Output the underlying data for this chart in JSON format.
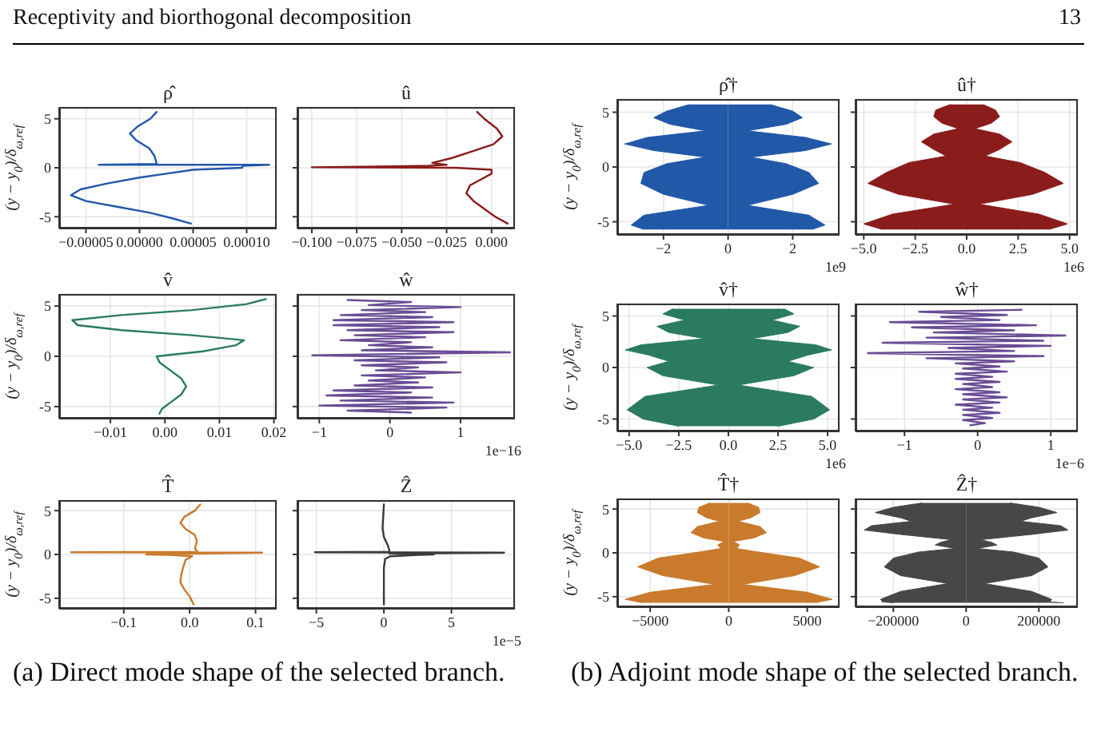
{
  "chart_data": [
    {
      "type": "line",
      "orientation": "horizontal",
      "title": "ρ̂",
      "ylabel": "(y − y$_{0}$)/δ$_{ω,ref}$",
      "grid": true,
      "annotations": [
        "Receptivity and biorthogonal decomposition",
        "13",
        "(a) Direct mode shape of the selected branch."
      ],
      "x": [
        5.7,
        5.0,
        4.2,
        3.5,
        2.8,
        2.0,
        1.2,
        0.4,
        0.3,
        0.3,
        0.2,
        0.0,
        -0.2,
        -0.6,
        -1.0,
        -1.6,
        -2.2,
        -2.8,
        -3.4,
        -4.0,
        -4.6,
        -5.2,
        -5.7
      ],
      "series": [
        {
          "color": "#2158a8",
          "values": [
            1.6e-05,
            1e-05,
            -2e-06,
            -9e-06,
            -3e-06,
            9e-06,
            1.4e-05,
            1.6e-05,
            -3.8e-05,
            0.000121,
            9.6e-05,
            9.6e-05,
            5e-05,
            2.5e-05,
            0,
            -3e-05,
            -5.5e-05,
            -6.4e-05,
            -5e-05,
            -2e-05,
            1e-05,
            3.2e-05,
            4.8e-05
          ]
        }
      ],
      "xlim": [
        -7.5e-05,
        0.000128
      ],
      "xticks": [
        {
          "value": -5e-05,
          "label": "−0.00005"
        },
        {
          "value": 0,
          "label": "0.00000"
        },
        {
          "value": 5e-05,
          "label": "0.00005"
        },
        {
          "value": 0.0001,
          "label": "0.00010"
        }
      ],
      "ylim": [
        -6.2,
        6.2
      ],
      "yticks": [
        -5,
        0,
        5
      ]
    },
    {
      "type": "line",
      "orientation": "horizontal",
      "title": "û",
      "grid": true,
      "tick_labels": "x",
      "x": [
        5.7,
        5,
        4,
        3.2,
        2.4,
        1.6,
        1.0,
        0.5,
        0.3,
        0.2,
        0.05,
        0,
        -0.2,
        -0.6,
        -1.2,
        -1.8,
        -2.6,
        -3.4,
        -4.2,
        -5,
        -5.7
      ],
      "series": [
        {
          "color": "#8b1c1c",
          "values": [
            -0.008,
            -0.004,
            0.003,
            0.006,
            0.001,
            -0.012,
            -0.022,
            -0.033,
            -0.025,
            -0.035,
            -0.1,
            -0.02,
            0,
            0,
            -0.006,
            -0.012,
            -0.014,
            -0.01,
            -0.004,
            0.002,
            0.009
          ]
        }
      ],
      "xlim": [
        -0.108,
        0.013
      ],
      "xticks": [
        {
          "value": -0.1,
          "label": "−0.100"
        },
        {
          "value": -0.075,
          "label": "−0.075"
        },
        {
          "value": -0.05,
          "label": "−0.050"
        },
        {
          "value": -0.025,
          "label": "−0.025"
        },
        {
          "value": 0,
          "label": "0.000"
        }
      ],
      "ylim": [
        -6.2,
        6.2
      ],
      "yticks": [
        -5,
        0,
        5
      ]
    },
    {
      "type": "line",
      "orientation": "horizontal",
      "title": "v̂",
      "ylabel": "(y − y$_{0}$)/δ$_{ω,ref}$",
      "grid": true,
      "x": [
        5.7,
        5.2,
        4.6,
        4.1,
        3.6,
        3.1,
        2.6,
        2.1,
        1.6,
        1.1,
        0.5,
        0,
        -0.6,
        -1.4,
        -2.2,
        -3,
        -3.8,
        -4.6,
        -5.2,
        -5.7
      ],
      "series": [
        {
          "color": "#2a7b60",
          "values": [
            0.0185,
            0.015,
            0.005,
            -0.008,
            -0.017,
            -0.016,
            -0.008,
            0.005,
            0.0145,
            0.013,
            0.007,
            -0.0015,
            -0.001,
            0.001,
            0.003,
            0.0039,
            0.003,
            0.001,
            -0.0005,
            -0.001
          ]
        }
      ],
      "xlim": [
        -0.0194,
        0.0205
      ],
      "xticks": [
        {
          "value": -0.01,
          "label": "−0.01"
        },
        {
          "value": 0,
          "label": "0.00"
        },
        {
          "value": 0.01,
          "label": "0.01"
        },
        {
          "value": 0.02,
          "label": "0.02"
        }
      ],
      "ylim": [
        -6.2,
        6.2
      ],
      "yticks": [
        -5,
        0,
        5
      ]
    },
    {
      "type": "line",
      "orientation": "horizontal",
      "title": "ŵ",
      "xlabel": "1e−16",
      "grid": true,
      "tick_labels": "x",
      "x": [
        5.6,
        5.4,
        5.1,
        4.9,
        4.6,
        4.4,
        4.1,
        3.9,
        3.6,
        3.4,
        3.1,
        2.9,
        2.6,
        2.4,
        2.1,
        1.9,
        1.6,
        1.4,
        1.1,
        0.9,
        0.6,
        0.4,
        0.1,
        -0.1,
        -0.4,
        -0.6,
        -0.9,
        -1.1,
        -1.4,
        -1.6,
        -1.9,
        -2.1,
        -2.4,
        -2.6,
        -2.9,
        -3.1,
        -3.4,
        -3.6,
        -3.9,
        -4.1,
        -4.4,
        -4.6,
        -4.9,
        -5.1,
        -5.4,
        -5.6
      ],
      "series": [
        {
          "color": "#6a4c94",
          "values": [
            -0.6,
            0.3,
            -0.3,
            1.0,
            -0.4,
            0.5,
            -0.7,
            0.6,
            -0.8,
            0.9,
            -0.8,
            0.7,
            -0.6,
            0.9,
            -0.5,
            0.5,
            -0.7,
            0.3,
            -0.3,
            0.6,
            -0.4,
            1.7,
            -1.1,
            0.7,
            -0.5,
            0.8,
            -0.4,
            0.4,
            -0.2,
            1.0,
            -0.4,
            0.5,
            -0.3,
            0.4,
            -0.5,
            0.6,
            -0.8,
            0.3,
            -0.9,
            0.6,
            -0.7,
            0.9,
            -1.0,
            0.8,
            -0.6,
            0.3
          ]
        }
      ],
      "xlim": [
        -1.31,
        1.77
      ],
      "xticks": [
        {
          "value": -1,
          "label": "−1"
        },
        0,
        1
      ],
      "ylim": [
        -6.2,
        6.2
      ],
      "yticks": [
        -5,
        0,
        5
      ]
    },
    {
      "type": "line",
      "orientation": "horizontal",
      "title": "T̂",
      "ylabel": "(y − y$_{0}$)/δ$_{ω,ref}$",
      "grid": true,
      "x": [
        5.7,
        5,
        4.3,
        3.6,
        2.9,
        2.2,
        1.5,
        0.7,
        0.3,
        0.25,
        0.2,
        0.1,
        0,
        -0.05,
        -0.2,
        -0.6,
        -1.5,
        -2.4,
        -3.2,
        -4,
        -4.8,
        -5.7
      ],
      "series": [
        {
          "color": "#c97a2c",
          "values": [
            0.016,
            0.008,
            -0.008,
            -0.014,
            -0.006,
            0.008,
            0.011,
            0.008,
            0.012,
            -0.18,
            0.11,
            0.008,
            -0.066,
            -0.03,
            0.004,
            -0.006,
            -0.01,
            -0.013,
            -0.014,
            -0.008,
            0,
            0.006
          ]
        }
      ],
      "xlim": [
        -0.198,
        0.132
      ],
      "xticks": [
        {
          "value": -0.1,
          "label": "−0.1"
        },
        {
          "value": 0,
          "label": "0.0"
        },
        {
          "value": 0.1,
          "label": "0.1"
        }
      ],
      "ylim": [
        -6.2,
        6.2
      ],
      "yticks": [
        -5,
        0,
        5
      ]
    },
    {
      "type": "line",
      "orientation": "horizontal",
      "title": "Ẑ",
      "xlabel": "1e−5",
      "grid": true,
      "tick_labels": "x",
      "x": [
        5.7,
        3,
        2,
        1,
        0.5,
        0.3,
        0.25,
        0.2,
        0.1,
        0,
        -0.05,
        -0.2,
        -0.5,
        -1.5,
        -5.7
      ],
      "series": [
        {
          "color": "#3a3a3a",
          "values": [
            0,
            -0.1,
            0,
            0.3,
            0.4,
            0.4,
            -5.1,
            8.9,
            0.4,
            3.7,
            2.6,
            0.5,
            0.1,
            0,
            0
          ]
        }
      ],
      "xlim": [
        -6.4,
        9.7
      ],
      "xticks": [
        {
          "value": -5,
          "label": "−5"
        },
        0,
        5
      ],
      "ylim": [
        -6.2,
        6.2
      ],
      "yticks": [
        -5,
        0,
        5
      ]
    },
    {
      "type": "area",
      "orientation": "horizontal",
      "title": "ρ̂†",
      "xlabel": "1e9",
      "ylabel": "(y − y$_{0}$)/δ$_{ω,ref}$",
      "grid": true,
      "annotations": [
        "(b) Adjoint mode shape of the selected branch."
      ],
      "x": [
        5.7,
        5.1,
        4.5,
        3.9,
        3.3,
        2.7,
        2.1,
        1.5,
        0.9,
        0.3,
        -0.5,
        -1.5,
        -2.5,
        -3.5,
        -4.4,
        -5.3,
        -5.7
      ],
      "series": [
        {
          "color": "#2158a8",
          "values": [
            1.3,
            2.0,
            2.3,
            1.8,
            0.6,
            2.4,
            3.2,
            2.4,
            0.7,
            1.8,
            2.5,
            2.8,
            2.0,
            0.6,
            2.5,
            3.0,
            2.6
          ]
        },
        {
          "color": "#2158a8",
          "values": [
            -1.2,
            -1.9,
            -2.3,
            -1.8,
            -0.7,
            -2.5,
            -3.2,
            -2.3,
            -0.7,
            -1.9,
            -2.6,
            -2.7,
            -2.0,
            -0.6,
            -2.6,
            -3.0,
            -2.6
          ]
        }
      ],
      "xlim": [
        -3.43,
        3.45
      ],
      "xticks": [
        {
          "value": -2,
          "label": "−2"
        },
        0,
        2
      ],
      "ylim": [
        -6.2,
        6.2
      ],
      "yticks": [
        -5,
        0,
        5
      ]
    },
    {
      "type": "area",
      "orientation": "horizontal",
      "title": "û†",
      "xlabel": "1e6",
      "grid": true,
      "tick_labels": "x",
      "x": [
        5.7,
        5.2,
        4.6,
        4.0,
        3.5,
        3.0,
        2.3,
        1.6,
        1.0,
        0.4,
        -0.5,
        -1.5,
        -2.5,
        -3.4,
        -4.3,
        -5.2,
        -5.7
      ],
      "series": [
        {
          "color": "#8b1c1c",
          "values": [
            0.8,
            1.4,
            1.6,
            1.2,
            0.4,
            1.6,
            2.2,
            1.6,
            0.9,
            2.6,
            3.8,
            4.7,
            3.2,
            0.6,
            3.5,
            4.9,
            4.0
          ]
        },
        {
          "color": "#8b1c1c",
          "values": [
            -0.8,
            -1.5,
            -1.6,
            -1.2,
            -0.4,
            -1.6,
            -2.2,
            -1.6,
            -1.0,
            -2.8,
            -3.9,
            -4.8,
            -3.3,
            -0.6,
            -3.6,
            -5.0,
            -4.1
          ]
        }
      ],
      "xlim": [
        -5.4,
        5.4
      ],
      "xticks": [
        {
          "value": -5,
          "label": "−5.0"
        },
        {
          "value": -2.5,
          "label": "−2.5"
        },
        {
          "value": 0,
          "label": "0.0"
        },
        {
          "value": 2.5,
          "label": "2.5"
        },
        {
          "value": 5,
          "label": "5.0"
        }
      ],
      "ylim": [
        -6.2,
        6.2
      ],
      "yticks": [
        -5,
        0,
        5
      ]
    },
    {
      "type": "area",
      "orientation": "horizontal",
      "title": "v̂†",
      "xlabel": "1e6",
      "ylabel": "(y − y$_{0}$)/δ$_{ω,ref}$",
      "grid": true,
      "x": [
        5.7,
        5.2,
        4.6,
        4.0,
        3.4,
        2.8,
        2.2,
        1.7,
        1.2,
        0.6,
        0,
        -0.8,
        -1.7,
        -2.8,
        -4.1,
        -5.0,
        -5.7
      ],
      "series": [
        {
          "color": "#2a7b60",
          "values": [
            2.8,
            3.3,
            2.2,
            3.6,
            3.0,
            1.2,
            4.4,
            5.2,
            4.0,
            3.0,
            4.3,
            3.3,
            0.5,
            4.2,
            5.1,
            4.3,
            2.5
          ]
        },
        {
          "color": "#2a7b60",
          "values": [
            -2.8,
            -3.3,
            -2.2,
            -3.6,
            -3.0,
            -1.2,
            -4.4,
            -5.2,
            -4.0,
            -3.0,
            -4.1,
            -3.3,
            -0.5,
            -4.2,
            -5.1,
            -4.3,
            -2.5
          ]
        }
      ],
      "xlim": [
        -5.6,
        5.6
      ],
      "xticks": [
        {
          "value": -5,
          "label": "−5.0"
        },
        {
          "value": -2.5,
          "label": "−2.5"
        },
        {
          "value": 0,
          "label": "0.0"
        },
        {
          "value": 2.5,
          "label": "2.5"
        },
        {
          "value": 5,
          "label": "5.0"
        }
      ],
      "ylim": [
        -6.2,
        6.2
      ],
      "yticks": [
        -5,
        0,
        5
      ]
    },
    {
      "type": "line",
      "orientation": "horizontal",
      "title": "ŵ†",
      "xlabel": "1e−6",
      "grid": true,
      "tick_labels": "x",
      "x": [
        5.6,
        5.4,
        5.1,
        4.9,
        4.6,
        4.4,
        4.1,
        3.9,
        3.6,
        3.4,
        3.1,
        2.9,
        2.6,
        2.4,
        2.1,
        1.9,
        1.6,
        1.4,
        1.1,
        0.9,
        0.6,
        0.4,
        0.1,
        -0.1,
        -0.4,
        -0.6,
        -0.9,
        -1.1,
        -1.4,
        -1.6,
        -1.9,
        -2.1,
        -2.4,
        -2.6,
        -2.9,
        -3.1,
        -3.4,
        -3.6,
        -3.9,
        -4.1,
        -4.4,
        -4.6,
        -4.9,
        -5.1,
        -5.4,
        -5.6
      ],
      "series": [
        {
          "color": "#6a4c94",
          "values": [
            0.6,
            -0.8,
            0.4,
            -0.5,
            0.3,
            -1.2,
            0.8,
            -0.9,
            0.5,
            -0.6,
            1.2,
            -0.7,
            0.9,
            -1.3,
            1.0,
            -0.4,
            0.5,
            -1.5,
            0.9,
            -0.7,
            0.5,
            -0.3,
            0.3,
            -0.2,
            0.4,
            -0.3,
            0.2,
            -0.3,
            0.3,
            -0.2,
            0.2,
            -0.3,
            0.3,
            -0.2,
            0.4,
            -0.2,
            0.3,
            -0.3,
            0.2,
            -0.2,
            0.3,
            -0.2,
            0.2,
            -0.2,
            0.1,
            -0.1
          ]
        }
      ],
      "xlim": [
        -1.67,
        1.37
      ],
      "xticks": [
        {
          "value": -1,
          "label": "−1"
        },
        0,
        1
      ],
      "ylim": [
        -6.2,
        6.2
      ],
      "yticks": [
        -5,
        0,
        5
      ]
    },
    {
      "type": "area",
      "orientation": "horizontal",
      "title": "T̂†",
      "ylabel": "(y − y$_{0}$)/δ$_{ω,ref}$",
      "grid": true,
      "x": [
        5.7,
        5.2,
        4.6,
        4.0,
        3.6,
        3.0,
        2.3,
        1.7,
        1.3,
        0.9,
        0.5,
        0.2,
        -0.6,
        -1.6,
        -2.6,
        -3.6,
        -4.5,
        -5.3,
        -5.7
      ],
      "series": [
        {
          "color": "#c97a2c",
          "values": [
            1200,
            1900,
            2000,
            1400,
            600,
            2000,
            2400,
            1600,
            300,
            700,
            500,
            1500,
            4500,
            5800,
            4200,
            900,
            5000,
            6600,
            5500
          ]
        },
        {
          "color": "#c97a2c",
          "values": [
            -1200,
            -1900,
            -2000,
            -1400,
            -600,
            -2000,
            -2400,
            -1600,
            -300,
            -700,
            -500,
            -1500,
            -4500,
            -5800,
            -4200,
            -900,
            -5000,
            -6600,
            -5500
          ]
        }
      ],
      "xlim": [
        -7100,
        7060
      ],
      "xticks": [
        {
          "value": -5000,
          "label": "−5000"
        },
        0,
        5000
      ],
      "ylim": [
        -6.2,
        6.2
      ],
      "yticks": [
        -5,
        0,
        5
      ]
    },
    {
      "type": "area",
      "orientation": "horizontal",
      "title": "Ẑ†",
      "grid": true,
      "tick_labels": "x",
      "x": [
        5.7,
        5.2,
        4.6,
        4.0,
        3.6,
        3.1,
        2.6,
        2.1,
        1.5,
        1.2,
        0.9,
        0.5,
        0.1,
        -0.6,
        -1.6,
        -2.6,
        -3.5,
        -4.4,
        -5.3,
        -5.6,
        -5.7
      ],
      "series": [
        {
          "color": "#474747",
          "values": [
            120000,
            200000,
            250000,
            180000,
            150000,
            260000,
            280000,
            180000,
            40000,
            70000,
            85000,
            30000,
            130000,
            200000,
            225000,
            180000,
            50000,
            180000,
            235000,
            230000,
            268000
          ]
        },
        {
          "color": "#474747",
          "values": [
            -120000,
            -200000,
            -250000,
            -180000,
            -150000,
            -260000,
            -280000,
            -180000,
            -40000,
            -70000,
            -85000,
            -30000,
            -130000,
            -200000,
            -225000,
            -180000,
            -50000,
            -180000,
            -235000,
            -230000,
            -200000
          ]
        }
      ],
      "xlim": [
        -304000,
        307000
      ],
      "xticks": [
        {
          "value": -200000,
          "label": "−200000"
        },
        0,
        200000
      ],
      "ylim": [
        -6.2,
        6.2
      ],
      "yticks": [
        -5,
        0,
        5
      ]
    }
  ]
}
